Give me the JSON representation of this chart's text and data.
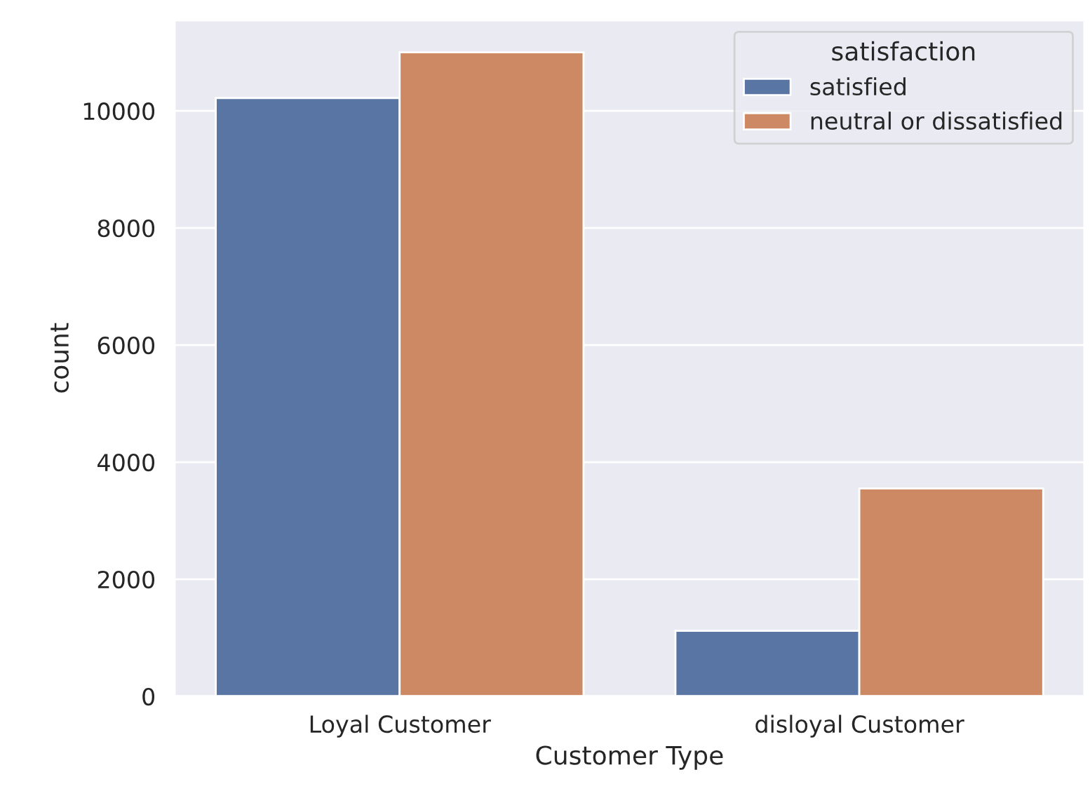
{
  "chart_data": {
    "type": "bar",
    "xlabel": "Customer Type",
    "ylabel": "count",
    "legend_title": "satisfaction",
    "categories": [
      "Loyal Customer",
      "disloyal Customer"
    ],
    "series": [
      {
        "name": "satisfied",
        "color": "#5875a4",
        "values": [
          10220,
          1120
        ]
      },
      {
        "name": "neutral or dissatisfied",
        "color": "#cc8963",
        "values": [
          11000,
          3550
        ]
      }
    ],
    "ylim": [
      0,
      11550
    ],
    "yticks": [
      0,
      2000,
      4000,
      6000,
      8000,
      10000
    ],
    "grid": "y",
    "legend": "top right"
  }
}
